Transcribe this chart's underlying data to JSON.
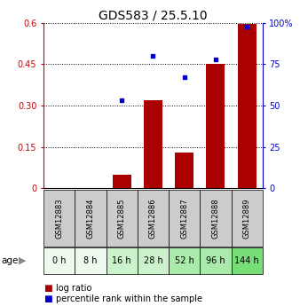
{
  "title": "GDS583 / 25.5.10",
  "categories": [
    "GSM12883",
    "GSM12884",
    "GSM12885",
    "GSM12886",
    "GSM12887",
    "GSM12888",
    "GSM12889"
  ],
  "age_labels": [
    "0 h",
    "8 h",
    "16 h",
    "28 h",
    "52 h",
    "96 h",
    "144 h"
  ],
  "age_bg_colors": [
    "#edfaed",
    "#edfaed",
    "#ccf2cc",
    "#ccf2cc",
    "#aaeaaa",
    "#aaeaaa",
    "#77dd77"
  ],
  "log_ratio": [
    0.0,
    0.0,
    0.05,
    0.32,
    0.13,
    0.45,
    0.595
  ],
  "percentile_rank": [
    null,
    null,
    53,
    80,
    67,
    78,
    98
  ],
  "ylim_left": [
    0,
    0.6
  ],
  "ylim_right": [
    0,
    100
  ],
  "yticks_left": [
    0,
    0.15,
    0.3,
    0.45,
    0.6
  ],
  "ytick_labels_left": [
    "0",
    "0.15",
    "0.30",
    "0.45",
    "0.6"
  ],
  "yticks_right": [
    0,
    25,
    50,
    75,
    100
  ],
  "ytick_labels_right": [
    "0",
    "25",
    "50",
    "75",
    "100%"
  ],
  "bar_color": "#aa0000",
  "dot_color": "#0000cc",
  "bar_width": 0.6,
  "legend_bar_label": "log ratio",
  "legend_dot_label": "percentile rank within the sample",
  "left_axis_color": "#cc0000",
  "right_axis_color": "#0000cc",
  "gsm_bg_color": "#cccccc",
  "grid_color": "#333333",
  "title_fontsize": 10,
  "tick_fontsize": 7,
  "gsm_fontsize": 6,
  "age_fontsize": 7,
  "legend_fontsize": 7
}
